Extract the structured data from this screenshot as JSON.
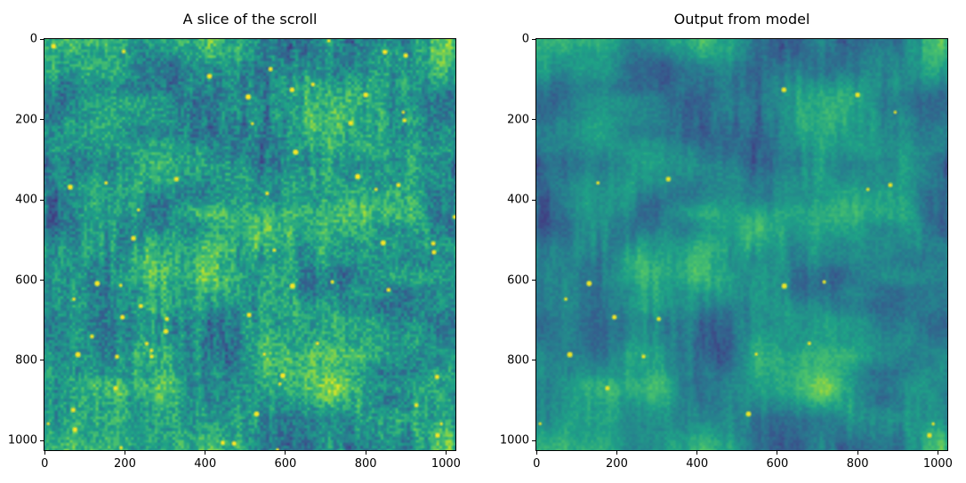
{
  "figure": {
    "background": "#ffffff",
    "text_color": "#000000"
  },
  "chart_data": [
    {
      "type": "heatmap",
      "title": "A slice of the scroll",
      "xlabel": "",
      "ylabel": "",
      "x_range": [
        -0.5,
        1023.5
      ],
      "y_range": [
        1023.5,
        -0.5
      ],
      "x_ticks": [
        0,
        200,
        400,
        600,
        800,
        1000
      ],
      "y_ticks": [
        0,
        200,
        400,
        600,
        800,
        1000
      ],
      "grid": false,
      "legend": "none",
      "colormap": "viridis",
      "colormap_stops": [
        "#440154",
        "#46327e",
        "#365c8d",
        "#277f8e",
        "#1fa187",
        "#4ac16d",
        "#a0da39",
        "#fde725"
      ],
      "image": {
        "size": [
          1024,
          1024
        ],
        "description": "Raw CT slice of a rolled papyrus scroll: mottled teal-green woven fibre texture with patches of fine vertical striations and horizontal strokes, irregular dark blue-purple blobs, and dozens of tiny bright yellow specks",
        "base_level": 0.56,
        "contrast": 1.0,
        "striation_strength": 0.16,
        "grain_strength": 0.13,
        "speck_count": 64,
        "speck_brightness": 1.0,
        "speck_color": "#fde725",
        "seed": 20240501
      }
    },
    {
      "type": "heatmap",
      "title": "Output from model",
      "xlabel": "",
      "ylabel": "",
      "x_range": [
        -0.5,
        1023.5
      ],
      "y_range": [
        1023.5,
        -0.5
      ],
      "x_ticks": [
        0,
        200,
        400,
        600,
        800,
        1000
      ],
      "y_ticks": [
        0,
        200,
        400,
        600,
        800,
        1000
      ],
      "grid": false,
      "legend": "none",
      "colormap": "viridis",
      "colormap_stops": [
        "#440154",
        "#46327e",
        "#365c8d",
        "#277f8e",
        "#1fa187",
        "#4ac16d",
        "#a0da39",
        "#fde725"
      ],
      "image": {
        "size": [
          1024,
          1024
        ],
        "description": "Model reconstruction of the same slice: identical large-scale structure but smoother and slightly darker, with deeper blue-purple patches and fewer, dimmer bright specks",
        "base_level": 0.5,
        "contrast": 1.15,
        "striation_strength": 0.09,
        "grain_strength": 0.05,
        "speck_count": 22,
        "speck_brightness": 0.86,
        "speck_color": "#d2e21b",
        "seed": 20240501
      }
    }
  ]
}
